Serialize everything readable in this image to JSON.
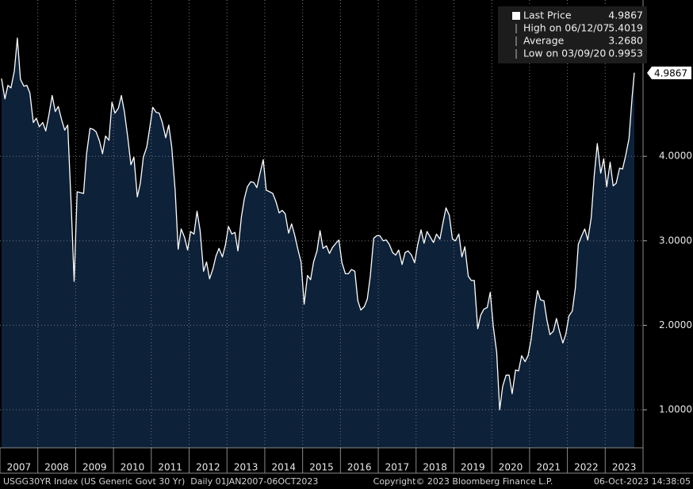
{
  "chart_data": {
    "type": "area",
    "x": [
      2007.04,
      2007.13,
      2007.21,
      2007.29,
      2007.38,
      2007.46,
      2007.54,
      2007.63,
      2007.71,
      2007.79,
      2007.88,
      2007.96,
      2008.04,
      2008.13,
      2008.21,
      2008.29,
      2008.38,
      2008.46,
      2008.54,
      2008.63,
      2008.71,
      2008.79,
      2008.88,
      2008.96,
      2009.04,
      2009.13,
      2009.21,
      2009.29,
      2009.38,
      2009.46,
      2009.54,
      2009.63,
      2009.71,
      2009.79,
      2009.88,
      2009.96,
      2010.04,
      2010.13,
      2010.21,
      2010.29,
      2010.38,
      2010.46,
      2010.54,
      2010.63,
      2010.71,
      2010.79,
      2010.88,
      2010.96,
      2011.04,
      2011.13,
      2011.21,
      2011.29,
      2011.38,
      2011.46,
      2011.54,
      2011.63,
      2011.71,
      2011.79,
      2011.88,
      2011.96,
      2012.04,
      2012.13,
      2012.21,
      2012.29,
      2012.38,
      2012.46,
      2012.54,
      2012.63,
      2012.71,
      2012.79,
      2012.88,
      2012.96,
      2013.04,
      2013.13,
      2013.21,
      2013.29,
      2013.38,
      2013.46,
      2013.54,
      2013.63,
      2013.71,
      2013.79,
      2013.88,
      2013.96,
      2014.04,
      2014.13,
      2014.21,
      2014.29,
      2014.38,
      2014.46,
      2014.54,
      2014.63,
      2014.71,
      2014.79,
      2014.88,
      2014.96,
      2015.04,
      2015.13,
      2015.21,
      2015.29,
      2015.38,
      2015.46,
      2015.54,
      2015.63,
      2015.71,
      2015.79,
      2015.88,
      2015.96,
      2016.04,
      2016.13,
      2016.21,
      2016.29,
      2016.38,
      2016.46,
      2016.54,
      2016.63,
      2016.71,
      2016.79,
      2016.88,
      2016.96,
      2017.04,
      2017.13,
      2017.21,
      2017.29,
      2017.38,
      2017.46,
      2017.54,
      2017.63,
      2017.71,
      2017.79,
      2017.88,
      2017.96,
      2018.04,
      2018.13,
      2018.21,
      2018.29,
      2018.38,
      2018.46,
      2018.54,
      2018.63,
      2018.71,
      2018.79,
      2018.88,
      2018.96,
      2019.04,
      2019.13,
      2019.21,
      2019.29,
      2019.38,
      2019.46,
      2019.54,
      2019.63,
      2019.71,
      2019.79,
      2019.88,
      2019.96,
      2020.04,
      2020.13,
      2020.21,
      2020.29,
      2020.38,
      2020.46,
      2020.54,
      2020.63,
      2020.71,
      2020.79,
      2020.88,
      2020.96,
      2021.04,
      2021.13,
      2021.21,
      2021.29,
      2021.38,
      2021.46,
      2021.54,
      2021.63,
      2021.71,
      2021.79,
      2021.88,
      2021.96,
      2022.04,
      2022.13,
      2022.21,
      2022.29,
      2022.38,
      2022.46,
      2022.54,
      2022.63,
      2022.71,
      2022.79,
      2022.88,
      2022.96,
      2023.04,
      2023.13,
      2023.21,
      2023.29,
      2023.38,
      2023.46,
      2023.54,
      2023.63,
      2023.71,
      2023.77
    ],
    "values": [
      4.92,
      4.68,
      4.84,
      4.81,
      5.01,
      5.4,
      4.91,
      4.83,
      4.84,
      4.75,
      4.4,
      4.45,
      4.35,
      4.4,
      4.3,
      4.48,
      4.72,
      4.53,
      4.59,
      4.43,
      4.31,
      4.37,
      3.44,
      2.52,
      3.58,
      3.57,
      3.56,
      4.03,
      4.33,
      4.32,
      4.29,
      4.18,
      4.03,
      4.24,
      4.19,
      4.64,
      4.51,
      4.57,
      4.72,
      4.52,
      4.22,
      3.9,
      3.99,
      3.52,
      3.68,
      3.99,
      4.11,
      4.34,
      4.58,
      4.52,
      4.51,
      4.4,
      4.22,
      4.37,
      4.11,
      3.6,
      2.9,
      3.14,
      3.04,
      2.89,
      3.11,
      3.08,
      3.35,
      3.12,
      2.64,
      2.75,
      2.55,
      2.67,
      2.82,
      2.91,
      2.81,
      2.95,
      3.17,
      3.08,
      3.1,
      2.88,
      3.28,
      3.5,
      3.64,
      3.7,
      3.69,
      3.63,
      3.81,
      3.96,
      3.6,
      3.58,
      3.56,
      3.47,
      3.33,
      3.36,
      3.32,
      3.09,
      3.2,
      3.07,
      2.89,
      2.75,
      2.25,
      2.59,
      2.54,
      2.75,
      2.88,
      3.12,
      2.91,
      2.94,
      2.85,
      2.92,
      2.97,
      3.01,
      2.74,
      2.61,
      2.61,
      2.66,
      2.64,
      2.29,
      2.18,
      2.22,
      2.31,
      2.58,
      3.03,
      3.06,
      3.06,
      3.0,
      3.01,
      2.96,
      2.86,
      2.83,
      2.89,
      2.72,
      2.86,
      2.88,
      2.83,
      2.74,
      2.95,
      3.13,
      2.97,
      3.11,
      3.04,
      2.98,
      3.08,
      3.02,
      3.21,
      3.39,
      3.3,
      3.02,
      3.0,
      3.08,
      2.81,
      2.93,
      2.58,
      2.53,
      2.53,
      1.96,
      2.12,
      2.19,
      2.21,
      2.39,
      1.99,
      1.68,
      1.0,
      1.28,
      1.41,
      1.41,
      1.19,
      1.47,
      1.46,
      1.64,
      1.57,
      1.64,
      1.83,
      2.17,
      2.41,
      2.3,
      2.29,
      2.06,
      1.89,
      1.93,
      2.08,
      1.93,
      1.79,
      1.9,
      2.11,
      2.17,
      2.44,
      2.96,
      3.06,
      3.14,
      3.01,
      3.27,
      3.78,
      4.15,
      3.8,
      3.97,
      3.64,
      3.93,
      3.65,
      3.68,
      3.86,
      3.85,
      4.01,
      4.21,
      4.7,
      4.99
    ],
    "color": "#ffffff",
    "fill": "#0d2139",
    "xlim": [
      2007,
      2024
    ],
    "ylim": [
      0.55,
      5.85
    ],
    "xticks": [
      2007,
      2008,
      2009,
      2010,
      2011,
      2012,
      2013,
      2014,
      2015,
      2016,
      2017,
      2018,
      2019,
      2020,
      2021,
      2022,
      2023
    ],
    "yticks": [
      {
        "value": 1,
        "label": "1.0000"
      },
      {
        "value": 2,
        "label": "2.0000"
      },
      {
        "value": 3,
        "label": "3.0000"
      },
      {
        "value": 4,
        "label": "4.0000"
      }
    ],
    "grid": true,
    "legend": [
      {
        "label": "Last Price",
        "value": 4.9867
      },
      {
        "label": "High on 06/12/07",
        "value": 5.4019
      },
      {
        "label": "Average",
        "value": {
          "value": 3.268,
          "label": "3.2680"
        }
      },
      {
        "label": "Low on 03/09/20",
        "value": 0.9953
      }
    ]
  },
  "footer": {
    "left": "USGG30YR Index (US Generic Govt 30 Yr)  Daily 01JAN2007-06OCT2023",
    "center": "Copyright© 2023 Bloomberg Finance L.P.",
    "right": "06-Oct-2023 14:38:05"
  }
}
